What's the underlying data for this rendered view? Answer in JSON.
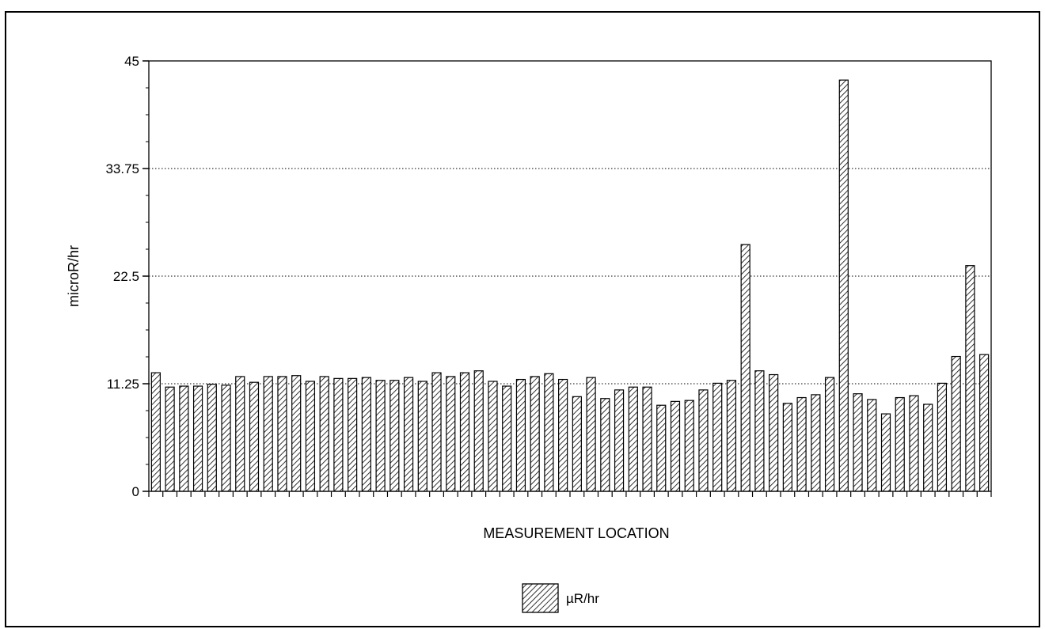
{
  "chart_data": {
    "type": "bar",
    "ylabel": "microR/hr",
    "xlabel": "MEASUREMENT LOCATION",
    "ylim": [
      0,
      45
    ],
    "yticks": [
      "0",
      "11.25",
      "22.5",
      "33.75",
      "45"
    ],
    "grid": true,
    "legend_position": "bottom-center",
    "series": [
      {
        "name": "µR/hr",
        "pattern": "diagonal-hatch",
        "color": "#000000",
        "values": [
          12.4,
          10.9,
          11.0,
          11.0,
          11.2,
          11.1,
          12.0,
          11.4,
          12.0,
          12.0,
          12.1,
          11.5,
          12.0,
          11.8,
          11.8,
          11.9,
          11.6,
          11.6,
          11.9,
          11.5,
          12.4,
          12.0,
          12.4,
          12.6,
          11.5,
          11.0,
          11.7,
          12.0,
          12.3,
          11.7,
          9.9,
          11.9,
          9.7,
          10.6,
          10.9,
          10.9,
          9.0,
          9.4,
          9.5,
          10.6,
          11.3,
          11.6,
          25.8,
          12.6,
          12.2,
          9.2,
          9.8,
          10.1,
          11.9,
          43.0,
          10.2,
          9.6,
          8.1,
          9.8,
          10.0,
          9.1,
          11.3,
          14.1,
          23.6,
          14.3
        ]
      }
    ]
  }
}
